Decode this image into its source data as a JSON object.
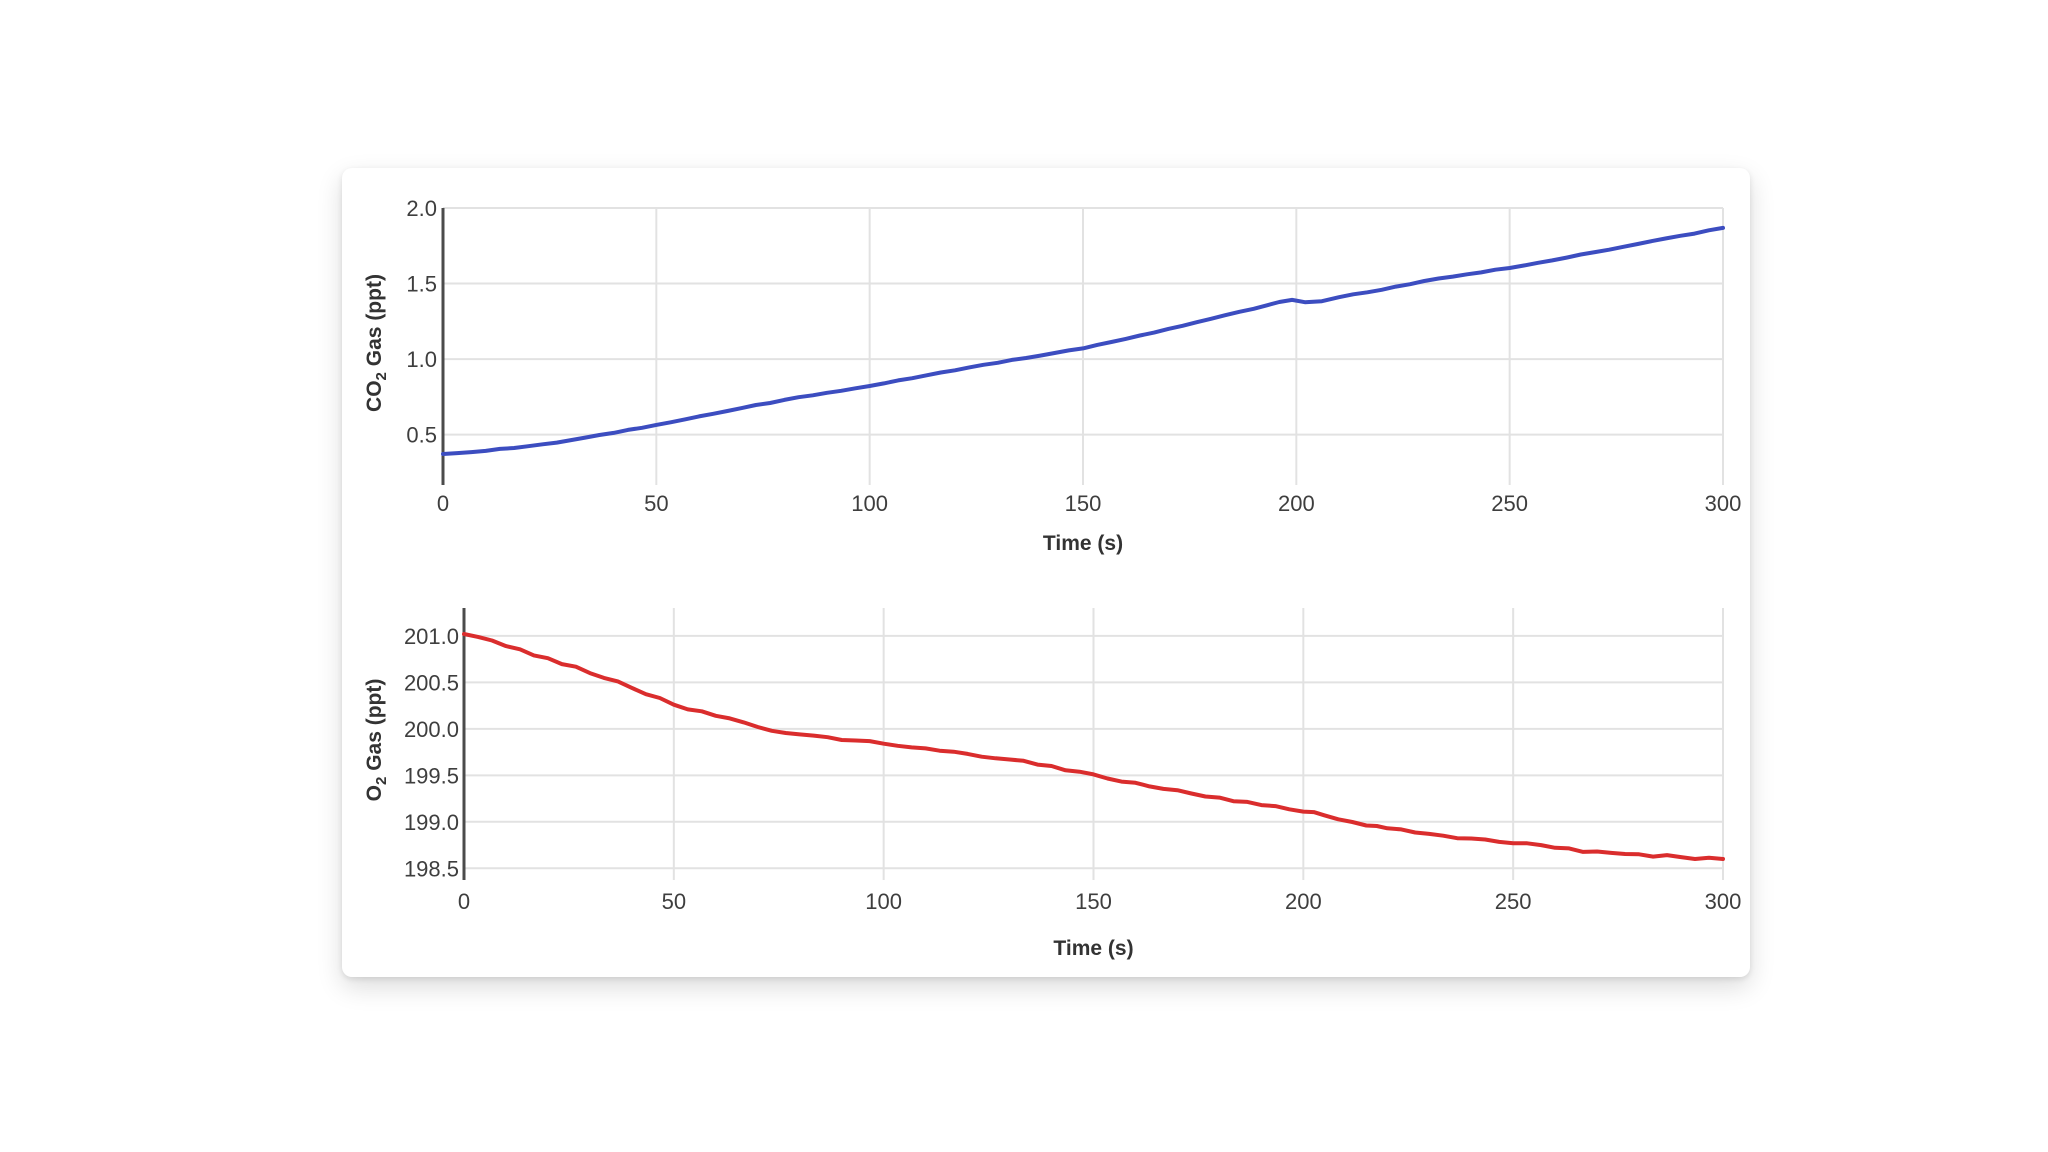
{
  "card": {
    "background": "#ffffff"
  },
  "colors": {
    "grid": "#e2e2e2",
    "axis_line": "#4b4b4b",
    "tick_text": "#3e3e3e",
    "title_text": "#333333",
    "co2_line": "#3c4dc0",
    "o2_line": "#da2d2d"
  },
  "chart_data": [
    {
      "type": "line",
      "title": "",
      "xlabel": "Time (s)",
      "ylabel_parts": {
        "pre": "CO",
        "sub": "2",
        "post": " Gas (ppt)"
      },
      "ylabel_text": "CO2 Gas (ppt)",
      "line_color": "#3c4dc0",
      "x_range": [
        0,
        300
      ],
      "ylim": [
        0.22,
        2.0
      ],
      "grid": true,
      "legend": "none",
      "x_ticks": [
        0,
        50,
        100,
        150,
        200,
        250,
        300
      ],
      "x_tick_labels": [
        "0",
        "50",
        "100",
        "150",
        "200",
        "250",
        "300"
      ],
      "y_ticks": [
        0.5,
        1.0,
        1.5,
        2.0
      ],
      "y_tick_labels": [
        "0.5",
        "1.0",
        "1.5",
        "2.0"
      ],
      "noise_amplitude": 0.006,
      "points": [
        [
          0,
          0.372
        ],
        [
          10,
          0.393
        ],
        [
          20,
          0.424
        ],
        [
          30,
          0.464
        ],
        [
          40,
          0.512
        ],
        [
          50,
          0.565
        ],
        [
          60,
          0.621
        ],
        [
          70,
          0.676
        ],
        [
          80,
          0.73
        ],
        [
          90,
          0.777
        ],
        [
          100,
          0.822
        ],
        [
          110,
          0.874
        ],
        [
          120,
          0.926
        ],
        [
          130,
          0.976
        ],
        [
          140,
          1.023
        ],
        [
          150,
          1.071
        ],
        [
          160,
          1.134
        ],
        [
          170,
          1.2
        ],
        [
          180,
          1.267
        ],
        [
          190,
          1.333
        ],
        [
          196,
          1.378
        ],
        [
          199,
          1.392
        ],
        [
          202,
          1.377
        ],
        [
          206,
          1.383
        ],
        [
          210,
          1.41
        ],
        [
          220,
          1.459
        ],
        [
          230,
          1.517
        ],
        [
          240,
          1.561
        ],
        [
          250,
          1.603
        ],
        [
          260,
          1.653
        ],
        [
          270,
          1.708
        ],
        [
          280,
          1.762
        ],
        [
          290,
          1.816
        ],
        [
          300,
          1.868
        ]
      ]
    },
    {
      "type": "line",
      "title": "",
      "xlabel": "Time (s)",
      "ylabel_parts": {
        "pre": "O",
        "sub": "2",
        "post": " Gas (ppt)"
      },
      "ylabel_text": "O2 Gas (ppt)",
      "line_color": "#da2d2d",
      "x_range": [
        0,
        300
      ],
      "ylim": [
        198.46,
        201.3
      ],
      "grid": true,
      "legend": "none",
      "x_ticks": [
        0,
        50,
        100,
        150,
        200,
        250,
        300
      ],
      "x_tick_labels": [
        "0",
        "50",
        "100",
        "150",
        "200",
        "250",
        "300"
      ],
      "y_ticks": [
        198.5,
        199.0,
        199.5,
        200.0,
        200.5,
        201.0
      ],
      "y_tick_labels": [
        "198.5",
        "199.0",
        "199.5",
        "200.0",
        "200.5",
        "201.0"
      ],
      "noise_amplitude": 0.035,
      "points": [
        [
          0,
          201.02
        ],
        [
          10,
          200.89
        ],
        [
          20,
          200.76
        ],
        [
          30,
          200.6
        ],
        [
          40,
          200.44
        ],
        [
          50,
          200.26
        ],
        [
          60,
          200.14
        ],
        [
          70,
          200.02
        ],
        [
          80,
          199.94
        ],
        [
          90,
          199.88
        ],
        [
          100,
          199.84
        ],
        [
          110,
          199.79
        ],
        [
          120,
          199.73
        ],
        [
          130,
          199.67
        ],
        [
          140,
          199.6
        ],
        [
          150,
          199.51
        ],
        [
          160,
          199.42
        ],
        [
          170,
          199.34
        ],
        [
          180,
          199.26
        ],
        [
          190,
          199.18
        ],
        [
          200,
          199.11
        ],
        [
          205,
          199.07
        ],
        [
          215,
          198.96
        ],
        [
          220,
          198.93
        ],
        [
          230,
          198.87
        ],
        [
          240,
          198.82
        ],
        [
          250,
          198.77
        ],
        [
          260,
          198.72
        ],
        [
          270,
          198.68
        ],
        [
          280,
          198.65
        ],
        [
          290,
          198.62
        ],
        [
          300,
          198.6
        ]
      ]
    }
  ]
}
